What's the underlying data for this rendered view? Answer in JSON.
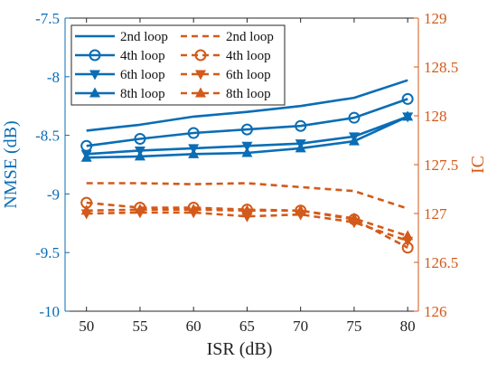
{
  "chart_data": {
    "type": "line",
    "x": [
      50,
      55,
      60,
      65,
      70,
      75,
      80
    ],
    "xlabel": "ISR (dB)",
    "xlim": [
      48,
      81
    ],
    "xticks": [
      "50",
      "55",
      "60",
      "65",
      "70",
      "75",
      "80"
    ],
    "ylabel_left": "NMSE (dB)",
    "ylim_left": [
      -10,
      -7.5
    ],
    "yticks_left": [
      "-7.5",
      "-8",
      "-8.5",
      "-9",
      "-9.5",
      "-10"
    ],
    "ylabel_right": "IC",
    "ylim_right": [
      126,
      129
    ],
    "yticks_right": [
      "129",
      "128.5",
      "128",
      "127.5",
      "127",
      "126.5",
      "126"
    ],
    "colors": {
      "nmse": "#0a6db5",
      "ic": "#d35a1a",
      "axis_left": "#0a6db5",
      "axis_right": "#d35a1a"
    },
    "legend_position": "top-left",
    "series": [
      {
        "name": "2nd loop",
        "axis": "left",
        "style": "solid",
        "marker": "none",
        "values": [
          -8.46,
          -8.41,
          -8.34,
          -8.3,
          -8.25,
          -8.18,
          -8.03
        ]
      },
      {
        "name": "4th loop",
        "axis": "left",
        "style": "solid",
        "marker": "circle",
        "values": [
          -8.59,
          -8.53,
          -8.48,
          -8.45,
          -8.42,
          -8.35,
          -8.19
        ]
      },
      {
        "name": "6th loop",
        "axis": "left",
        "style": "solid",
        "marker": "triangle-down",
        "values": [
          -8.66,
          -8.63,
          -8.61,
          -8.59,
          -8.57,
          -8.51,
          -8.34
        ]
      },
      {
        "name": "8th loop",
        "axis": "left",
        "style": "solid",
        "marker": "triangle-up",
        "values": [
          -8.69,
          -8.68,
          -8.66,
          -8.65,
          -8.61,
          -8.55,
          -8.34
        ]
      },
      {
        "name": "2nd loop",
        "axis": "right",
        "style": "dashed",
        "marker": "none",
        "values": [
          127.31,
          127.31,
          127.3,
          127.31,
          127.27,
          127.23,
          127.05
        ]
      },
      {
        "name": "4th loop",
        "axis": "right",
        "style": "dashed",
        "marker": "circle",
        "values": [
          127.11,
          127.06,
          127.06,
          127.04,
          127.03,
          126.94,
          126.65
        ]
      },
      {
        "name": "6th loop",
        "axis": "right",
        "style": "dashed",
        "marker": "triangle-down",
        "values": [
          127.0,
          127.01,
          127.01,
          126.97,
          126.99,
          126.91,
          126.72
        ]
      },
      {
        "name": "8th loop",
        "axis": "right",
        "style": "dashed",
        "marker": "triangle-up",
        "values": [
          127.03,
          127.04,
          127.04,
          127.03,
          127.03,
          126.95,
          126.77
        ]
      }
    ]
  }
}
